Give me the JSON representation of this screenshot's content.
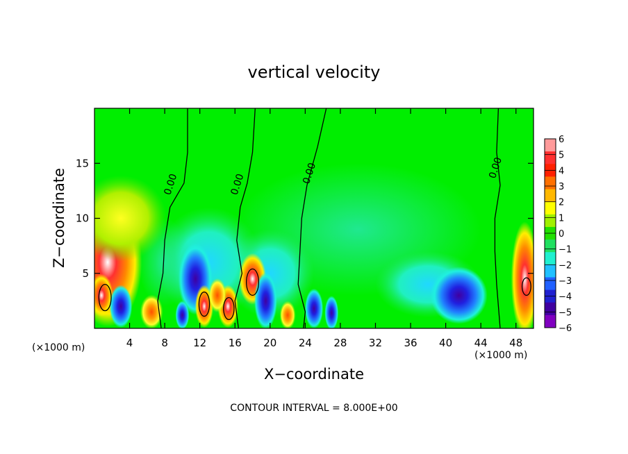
{
  "chart_data": {
    "type": "heatmap",
    "title": "vertical velocity",
    "xlabel": "X−coordinate",
    "ylabel": "Z−coordinate",
    "x_unit_left": "(×1000 m)",
    "x_unit_right": "(×1000 m)",
    "xlim": [
      0,
      50
    ],
    "ylim": [
      0,
      20
    ],
    "x_ticks": [
      4,
      8,
      12,
      16,
      20,
      24,
      28,
      32,
      36,
      40,
      44,
      48
    ],
    "y_ticks": [
      5,
      10,
      15
    ],
    "x_tick_labels": [
      "4",
      "8",
      "12",
      "16",
      "20",
      "24",
      "28",
      "32",
      "36",
      "40",
      "44",
      "48"
    ],
    "y_tick_labels": [
      "5",
      "10",
      "15"
    ],
    "footer": "CONTOUR INTERVAL = 8.000E+00",
    "colorbar": {
      "labels": [
        "6",
        "5",
        "4",
        "3",
        "2",
        "1",
        "0",
        "−1",
        "−2",
        "−3",
        "−4",
        "−5",
        "−6"
      ],
      "colors": [
        "#ff9a9a",
        "#ff3030",
        "#ff2000",
        "#ff7000",
        "#ffb800",
        "#ffff00",
        "#a0f000",
        "#20e000",
        "#20e060",
        "#20f0d0",
        "#20c0ff",
        "#2060ff",
        "#2020d0",
        "#4000a0",
        "#8000c0"
      ]
    },
    "background_color": "#00ee00",
    "contour_labels": [
      {
        "text": "0.00",
        "x": 9.0,
        "z": 13.0
      },
      {
        "text": "0.00",
        "x": 16.6,
        "z": 13.0
      },
      {
        "text": "0.00",
        "x": 24.8,
        "z": 14.0
      },
      {
        "text": "0.00",
        "x": 46.0,
        "z": 14.5
      }
    ],
    "features": [
      {
        "type": "updraft",
        "x": 1.5,
        "z": 6.0,
        "sx": 3.0,
        "sz": 4.5,
        "value": 5
      },
      {
        "type": "updraft",
        "x": 3.0,
        "z": 10.0,
        "sx": 4.0,
        "sz": 3.0,
        "value": 1.5
      },
      {
        "type": "updraft",
        "x": 0.8,
        "z": 3.0,
        "sx": 1.0,
        "sz": 1.5,
        "value": 7
      },
      {
        "type": "downdraft",
        "x": 11.5,
        "z": 4.5,
        "sx": 1.5,
        "sz": 2.5,
        "value": -5
      },
      {
        "type": "updraft",
        "x": 12.5,
        "z": 2.0,
        "sx": 0.8,
        "sz": 1.5,
        "value": 7
      },
      {
        "type": "updraft",
        "x": 15.2,
        "z": 2.0,
        "sx": 0.9,
        "sz": 1.5,
        "value": 6
      },
      {
        "type": "updraft",
        "x": 18.0,
        "z": 4.5,
        "sx": 1.2,
        "sz": 1.8,
        "value": 6
      },
      {
        "type": "downdraft",
        "x": 19.5,
        "z": 2.5,
        "sx": 1.0,
        "sz": 2.0,
        "value": -4
      },
      {
        "type": "downdraft",
        "x": 41.5,
        "z": 3.0,
        "sx": 2.5,
        "sz": 2.0,
        "value": -5
      },
      {
        "type": "updraft",
        "x": 49.0,
        "z": 4.5,
        "sx": 1.2,
        "sz": 4.0,
        "value": 6
      }
    ]
  }
}
